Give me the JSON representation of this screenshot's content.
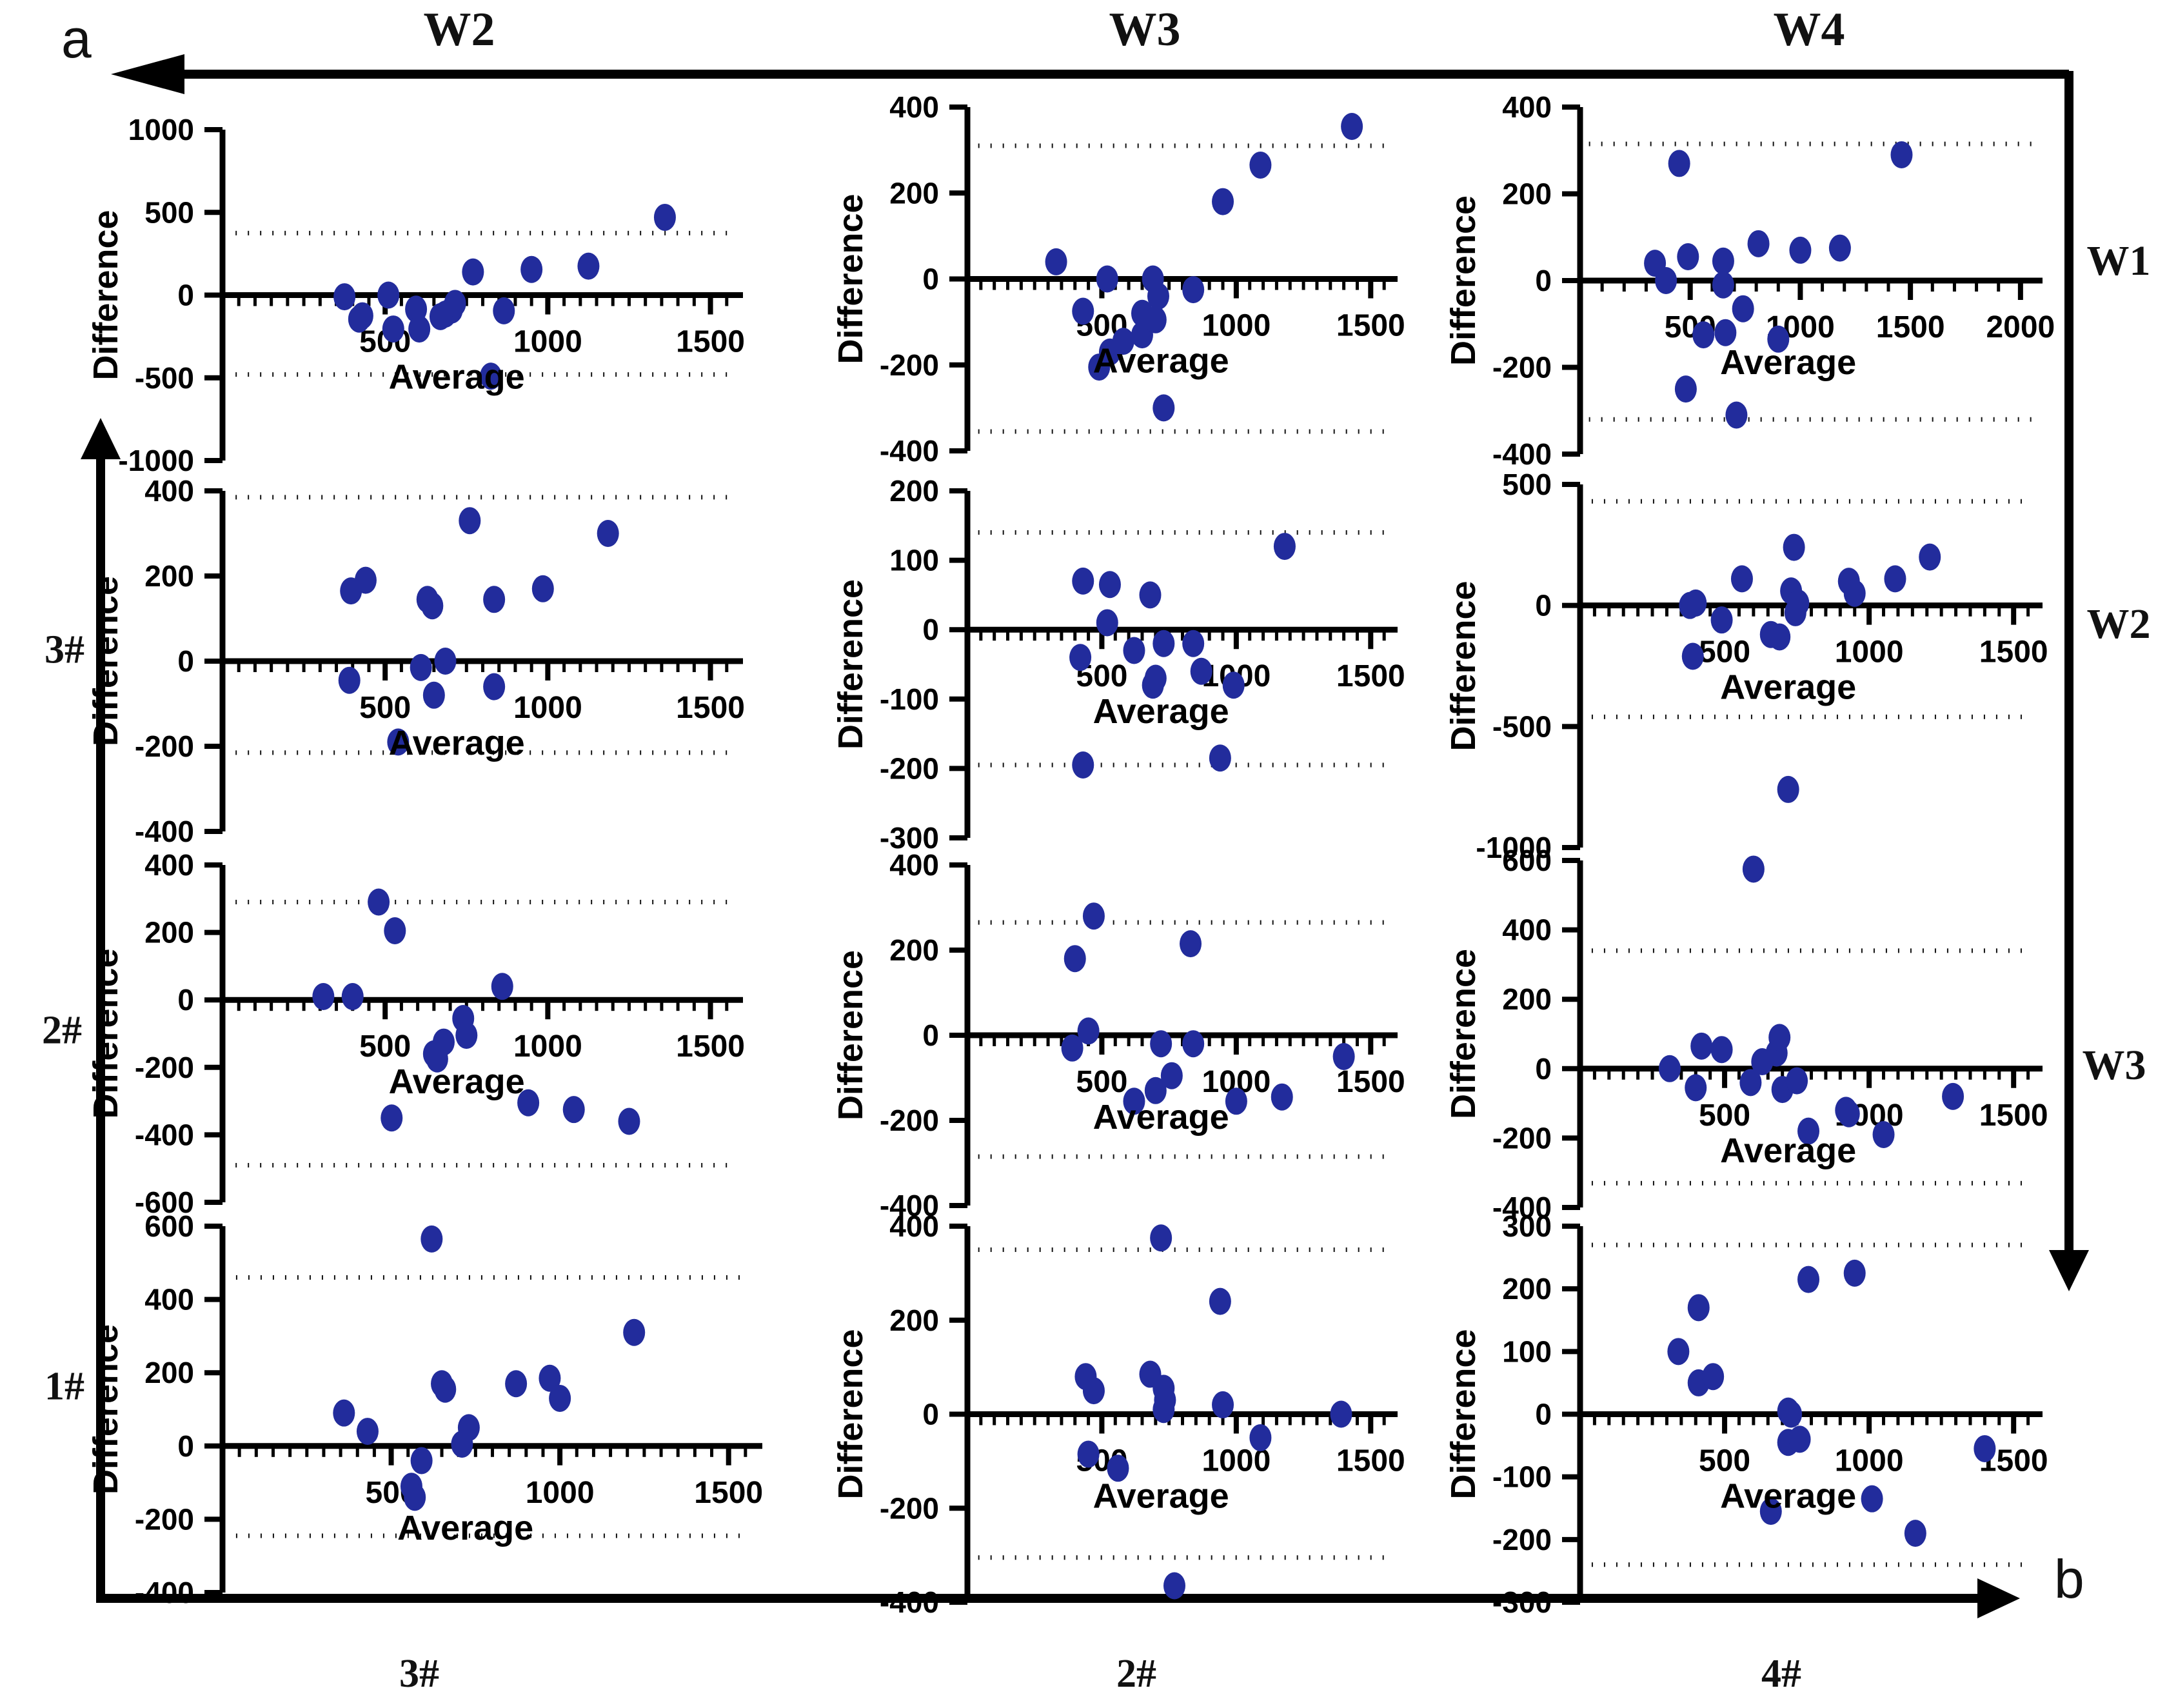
{
  "figure": {
    "panel_label_a": "a",
    "panel_label_b": "b",
    "top_headers": [
      "W2",
      "W3",
      "W4"
    ],
    "right_labels": [
      "W1",
      "W2",
      "W3"
    ],
    "left_labels": [
      "3#",
      "2#",
      "1#"
    ],
    "bottom_labels": [
      "3#",
      "2#",
      "4#"
    ],
    "point_color": "#222c9c",
    "axis_color": "#000000",
    "loa_line_color": "#111111"
  },
  "chart_data": [
    {
      "id": "r1c1",
      "type": "scatter",
      "col_label": "W2",
      "row_label": "W1",
      "xlabel": "Average",
      "ylabel": "Difference",
      "xlim": [
        0,
        1600
      ],
      "xticks": [
        500,
        1000,
        1500
      ],
      "xminor": 50,
      "ylim": [
        -1000,
        1000
      ],
      "yticks": [
        1000,
        500,
        0,
        -500,
        -1000
      ],
      "loa_upper": 375,
      "loa_lower": -480,
      "grid": false,
      "points": [
        [
          375,
          -10
        ],
        [
          510,
          0
        ],
        [
          430,
          -125
        ],
        [
          420,
          -145
        ],
        [
          525,
          -205
        ],
        [
          595,
          -85
        ],
        [
          605,
          -205
        ],
        [
          670,
          -130
        ],
        [
          685,
          -115
        ],
        [
          705,
          -90
        ],
        [
          715,
          -50
        ],
        [
          770,
          140
        ],
        [
          865,
          -95
        ],
        [
          825,
          -490
        ],
        [
          950,
          155
        ],
        [
          1125,
          175
        ],
        [
          1360,
          470
        ]
      ]
    },
    {
      "id": "r1c2",
      "type": "scatter",
      "col_label": "W3",
      "row_label": "W1",
      "xlabel": "Average",
      "ylabel": "Difference",
      "xlim": [
        0,
        1600
      ],
      "xticks": [
        500,
        1000,
        1500
      ],
      "xminor": 50,
      "ylim": [
        -400,
        400
      ],
      "yticks": [
        400,
        200,
        0,
        -200,
        -400
      ],
      "loa_upper": 310,
      "loa_lower": -355,
      "grid": false,
      "points": [
        [
          330,
          40
        ],
        [
          430,
          -75
        ],
        [
          490,
          -205
        ],
        [
          520,
          0
        ],
        [
          530,
          -170
        ],
        [
          580,
          -145
        ],
        [
          650,
          -80
        ],
        [
          650,
          -130
        ],
        [
          690,
          0
        ],
        [
          700,
          -95
        ],
        [
          710,
          -40
        ],
        [
          730,
          -300
        ],
        [
          840,
          -25
        ],
        [
          950,
          180
        ],
        [
          1090,
          265
        ],
        [
          1430,
          355
        ]
      ]
    },
    {
      "id": "r1c3",
      "type": "scatter",
      "col_label": "W4",
      "row_label": "W1",
      "xlabel": "Average",
      "ylabel": "Difference",
      "xlim": [
        0,
        2100
      ],
      "xticks": [
        500,
        1000,
        1500,
        2000
      ],
      "xminor": 100,
      "ylim": [
        -400,
        400
      ],
      "yticks": [
        400,
        200,
        0,
        -200,
        -400
      ],
      "loa_upper": 315,
      "loa_lower": -320,
      "grid": false,
      "points": [
        [
          340,
          40
        ],
        [
          390,
          0
        ],
        [
          450,
          270
        ],
        [
          480,
          -250
        ],
        [
          490,
          55
        ],
        [
          560,
          -125
        ],
        [
          650,
          45
        ],
        [
          650,
          -10
        ],
        [
          660,
          -120
        ],
        [
          710,
          -310
        ],
        [
          740,
          -65
        ],
        [
          810,
          85
        ],
        [
          900,
          -135
        ],
        [
          1000,
          70
        ],
        [
          1180,
          75
        ],
        [
          1460,
          290
        ]
      ]
    },
    {
      "id": "r2c1",
      "type": "scatter",
      "col_label": "W2",
      "row_label": "W2",
      "row_label_left": "3#",
      "xlabel": "Average",
      "ylabel": "Difference",
      "xlim": [
        0,
        1600
      ],
      "xticks": [
        500,
        1000,
        1500
      ],
      "xminor": 50,
      "ylim": [
        -400,
        400
      ],
      "yticks": [
        400,
        200,
        0,
        -200,
        -400
      ],
      "loa_upper": 385,
      "loa_lower": -215,
      "grid": false,
      "points": [
        [
          395,
          165
        ],
        [
          440,
          190
        ],
        [
          390,
          -45
        ],
        [
          540,
          -190
        ],
        [
          610,
          -15
        ],
        [
          630,
          145
        ],
        [
          645,
          130
        ],
        [
          650,
          -80
        ],
        [
          685,
          0
        ],
        [
          760,
          330
        ],
        [
          835,
          145
        ],
        [
          835,
          -60
        ],
        [
          985,
          170
        ],
        [
          1185,
          300
        ]
      ]
    },
    {
      "id": "r2c2",
      "type": "scatter",
      "col_label": "W3",
      "row_label": "W2",
      "row_label_left": "3#",
      "xlabel": "Average",
      "ylabel": "Difference",
      "xlim": [
        0,
        1600
      ],
      "xticks": [
        500,
        1000,
        1500
      ],
      "xminor": 50,
      "ylim": [
        -300,
        200
      ],
      "yticks": [
        200,
        100,
        0,
        -100,
        -200,
        -300
      ],
      "loa_upper": 140,
      "loa_lower": -195,
      "grid": false,
      "points": [
        [
          430,
          70
        ],
        [
          420,
          -40
        ],
        [
          430,
          -195
        ],
        [
          530,
          65
        ],
        [
          520,
          10
        ],
        [
          620,
          -30
        ],
        [
          680,
          50
        ],
        [
          690,
          -80
        ],
        [
          700,
          -70
        ],
        [
          730,
          -20
        ],
        [
          840,
          -20
        ],
        [
          870,
          -60
        ],
        [
          940,
          -185
        ],
        [
          990,
          -80
        ],
        [
          1180,
          120
        ]
      ]
    },
    {
      "id": "r2c3",
      "type": "scatter",
      "col_label": "W4",
      "row_label": "W2",
      "row_label_left": "3#",
      "xlabel": "Average",
      "ylabel": "Difference",
      "xlim": [
        0,
        1600
      ],
      "xticks": [
        500,
        1000,
        1500
      ],
      "xminor": 50,
      "ylim": [
        -1000,
        500
      ],
      "yticks": [
        500,
        0,
        -500,
        -1000
      ],
      "loa_upper": 430,
      "loa_lower": -460,
      "grid": false,
      "points": [
        [
          380,
          0
        ],
        [
          400,
          10
        ],
        [
          390,
          -210
        ],
        [
          490,
          -60
        ],
        [
          560,
          110
        ],
        [
          660,
          -120
        ],
        [
          690,
          -130
        ],
        [
          730,
          60
        ],
        [
          740,
          240
        ],
        [
          745,
          -30
        ],
        [
          755,
          10
        ],
        [
          930,
          100
        ],
        [
          950,
          50
        ],
        [
          1090,
          110
        ],
        [
          1210,
          200
        ],
        [
          720,
          -760
        ]
      ]
    },
    {
      "id": "r3c1",
      "type": "scatter",
      "col_label": "W2",
      "row_label": "W3",
      "row_label_left": "2#",
      "xlabel": "Average",
      "ylabel": "Difference",
      "xlim": [
        0,
        1600
      ],
      "xticks": [
        500,
        1000,
        1500
      ],
      "xminor": 50,
      "ylim": [
        -600,
        400
      ],
      "yticks": [
        400,
        200,
        0,
        -200,
        -400,
        -600
      ],
      "loa_upper": 290,
      "loa_lower": -490,
      "grid": false,
      "points": [
        [
          310,
          10
        ],
        [
          400,
          10
        ],
        [
          480,
          290
        ],
        [
          530,
          205
        ],
        [
          520,
          -350
        ],
        [
          650,
          -160
        ],
        [
          660,
          -175
        ],
        [
          680,
          -125
        ],
        [
          740,
          -55
        ],
        [
          750,
          -105
        ],
        [
          860,
          40
        ],
        [
          940,
          -305
        ],
        [
          1080,
          -325
        ],
        [
          1250,
          -360
        ]
      ]
    },
    {
      "id": "r3c2",
      "type": "scatter",
      "col_label": "W3",
      "row_label": "W3",
      "row_label_left": "2#",
      "xlabel": "Average",
      "ylabel": "Difference",
      "xlim": [
        0,
        1600
      ],
      "xticks": [
        500,
        1000,
        1500
      ],
      "xminor": 50,
      "ylim": [
        -400,
        400
      ],
      "yticks": [
        400,
        200,
        0,
        -200,
        -400
      ],
      "loa_upper": 265,
      "loa_lower": -285,
      "grid": false,
      "points": [
        [
          390,
          -30
        ],
        [
          400,
          180
        ],
        [
          450,
          10
        ],
        [
          470,
          280
        ],
        [
          620,
          -155
        ],
        [
          700,
          -130
        ],
        [
          720,
          -20
        ],
        [
          760,
          -95
        ],
        [
          830,
          215
        ],
        [
          840,
          -20
        ],
        [
          1000,
          -155
        ],
        [
          1170,
          -145
        ],
        [
          1400,
          -50
        ]
      ]
    },
    {
      "id": "r3c3",
      "type": "scatter",
      "col_label": "W4",
      "row_label": "W3",
      "row_label_left": "2#",
      "xlabel": "Average",
      "ylabel": "Difference",
      "xlim": [
        0,
        1600
      ],
      "xticks": [
        500,
        1000,
        1500
      ],
      "xminor": 50,
      "ylim": [
        -400,
        600
      ],
      "yticks": [
        600,
        400,
        200,
        0,
        -200,
        -400
      ],
      "loa_upper": 340,
      "loa_lower": -330,
      "grid": false,
      "points": [
        [
          310,
          0
        ],
        [
          400,
          -55
        ],
        [
          420,
          65
        ],
        [
          490,
          55
        ],
        [
          600,
          575
        ],
        [
          590,
          -40
        ],
        [
          630,
          20
        ],
        [
          680,
          45
        ],
        [
          690,
          90
        ],
        [
          700,
          -60
        ],
        [
          750,
          -35
        ],
        [
          790,
          -180
        ],
        [
          920,
          -120
        ],
        [
          930,
          -130
        ],
        [
          1050,
          -190
        ],
        [
          1290,
          -80
        ]
      ]
    },
    {
      "id": "r4c1",
      "type": "scatter",
      "col_label": "W2",
      "row_label_left": "1#",
      "bottom_label": "3#",
      "xlabel": "Average",
      "ylabel": "Difference",
      "xlim": [
        0,
        1600
      ],
      "xticks": [
        500,
        1000,
        1500
      ],
      "xminor": 50,
      "ylim": [
        -400,
        600
      ],
      "yticks": [
        600,
        400,
        200,
        0,
        -200,
        -400
      ],
      "loa_upper": 460,
      "loa_lower": -245,
      "grid": false,
      "points": [
        [
          360,
          90
        ],
        [
          430,
          40
        ],
        [
          560,
          -110
        ],
        [
          570,
          -140
        ],
        [
          590,
          -40
        ],
        [
          620,
          565
        ],
        [
          650,
          170
        ],
        [
          660,
          155
        ],
        [
          710,
          5
        ],
        [
          730,
          50
        ],
        [
          870,
          170
        ],
        [
          970,
          185
        ],
        [
          1000,
          130
        ],
        [
          1220,
          310
        ]
      ]
    },
    {
      "id": "r4c2",
      "type": "scatter",
      "col_label": "W3",
      "row_label_left": "1#",
      "bottom_label": "2#",
      "xlabel": "Average",
      "ylabel": "Difference",
      "xlim": [
        0,
        1600
      ],
      "xticks": [
        500,
        1000,
        1500
      ],
      "xminor": 50,
      "ylim": [
        -400,
        400
      ],
      "yticks": [
        400,
        200,
        0,
        -200,
        -400
      ],
      "loa_upper": 350,
      "loa_lower": -305,
      "grid": false,
      "points": [
        [
          440,
          80
        ],
        [
          470,
          50
        ],
        [
          450,
          -85
        ],
        [
          560,
          -115
        ],
        [
          680,
          85
        ],
        [
          720,
          375
        ],
        [
          730,
          55
        ],
        [
          735,
          30
        ],
        [
          730,
          10
        ],
        [
          770,
          -365
        ],
        [
          940,
          240
        ],
        [
          950,
          20
        ],
        [
          1090,
          -50
        ],
        [
          1390,
          0
        ]
      ]
    },
    {
      "id": "r4c3",
      "type": "scatter",
      "col_label": "W4",
      "row_label_left": "1#",
      "bottom_label": "4#",
      "xlabel": "Average",
      "ylabel": "Difference",
      "xlim": [
        0,
        1600
      ],
      "xticks": [
        500,
        1000,
        1500
      ],
      "xminor": 50,
      "ylim": [
        -300,
        300
      ],
      "yticks": [
        300,
        200,
        100,
        0,
        -100,
        -200,
        -300
      ],
      "loa_upper": 270,
      "loa_lower": -240,
      "grid": false,
      "points": [
        [
          340,
          100
        ],
        [
          410,
          170
        ],
        [
          410,
          50
        ],
        [
          460,
          60
        ],
        [
          660,
          -155
        ],
        [
          720,
          5
        ],
        [
          730,
          0
        ],
        [
          720,
          -45
        ],
        [
          760,
          -40
        ],
        [
          790,
          215
        ],
        [
          950,
          225
        ],
        [
          1010,
          -135
        ],
        [
          1160,
          -190
        ],
        [
          1400,
          -55
        ]
      ]
    }
  ]
}
